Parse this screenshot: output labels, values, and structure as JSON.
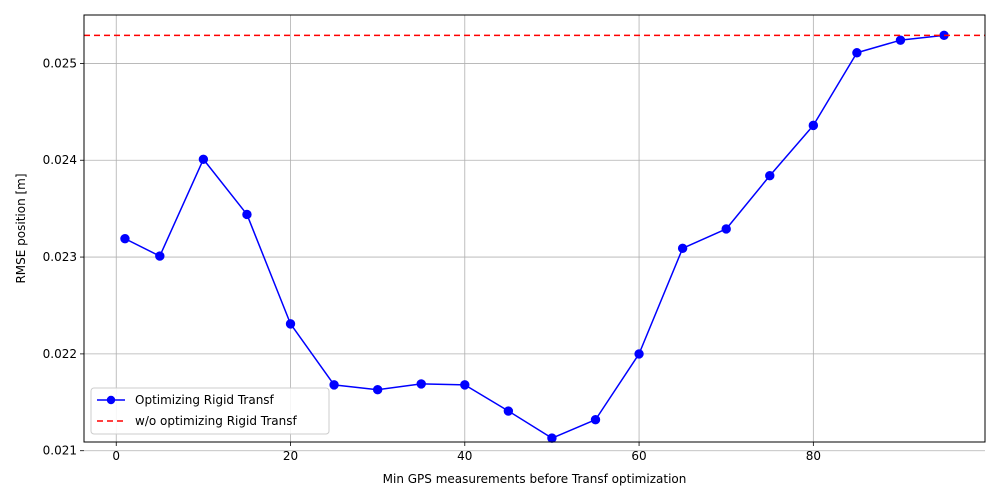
{
  "chart_data": {
    "type": "line",
    "title": "",
    "xlabel": "Min GPS measurements before Transf optimization",
    "ylabel": "RMSE position [m]",
    "xlim": [
      -3.7,
      99.7
    ],
    "ylim": [
      0.02109,
      0.0255
    ],
    "xticks": [
      0,
      20,
      40,
      60,
      80
    ],
    "xtick_labels": [
      "0",
      "20",
      "40",
      "60",
      "80"
    ],
    "yticks": [
      0.021,
      0.022,
      0.023,
      0.024,
      0.025
    ],
    "ytick_labels": [
      "0.021",
      "0.022",
      "0.023",
      "0.024",
      "0.025"
    ],
    "grid": true,
    "legend_position": "lower-left",
    "series": [
      {
        "name": "Optimizing Rigid Transf",
        "style": "solid line with circle markers",
        "color": "#0000ff",
        "x": [
          1,
          5,
          10,
          15,
          20,
          25,
          30,
          35,
          40,
          45,
          50,
          55,
          60,
          65,
          70,
          75,
          80,
          85,
          90,
          95
        ],
        "y": [
          0.02319,
          0.02301,
          0.02401,
          0.02344,
          0.02231,
          0.02168,
          0.02163,
          0.02169,
          0.02168,
          0.02141,
          0.02113,
          0.02132,
          0.022,
          0.02309,
          0.02329,
          0.02384,
          0.02436,
          0.02511,
          0.02524,
          0.02529
        ]
      },
      {
        "name": "w/o optimizing Rigid Transf",
        "style": "dashed horizontal line",
        "color": "#ff0000",
        "y": 0.02529
      }
    ]
  }
}
